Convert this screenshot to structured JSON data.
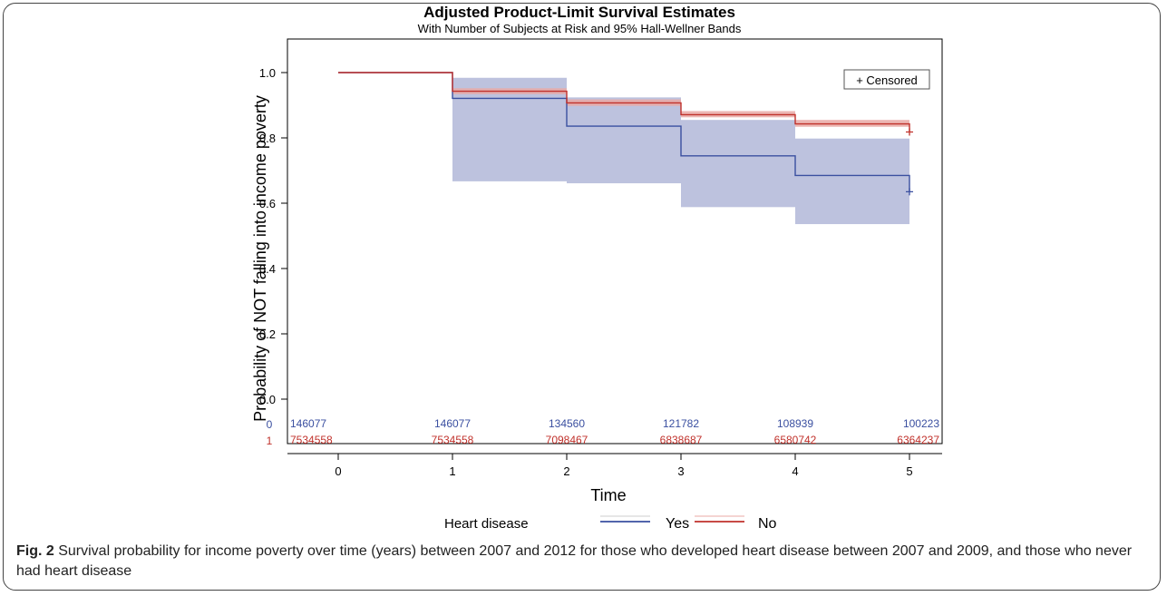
{
  "chart_data": {
    "type": "line",
    "subtype": "kaplan-meier step with confidence bands",
    "title": "Adjusted Product-Limit Survival Estimates",
    "subtitle": "With Number of Subjects at Risk and 95% Hall-Wellner Bands",
    "xlabel": "Time",
    "ylabel": "Probability of NOT falling into income poverty",
    "xlim": [
      0,
      5
    ],
    "ylim": [
      0,
      1
    ],
    "x_ticks": [
      "0",
      "1",
      "2",
      "3",
      "4",
      "5"
    ],
    "y_ticks": [
      "0.0",
      "0.2",
      "0.4",
      "0.6",
      "0.8",
      "1.0"
    ],
    "grid": false,
    "censor_legend": "+ Censored",
    "legend": {
      "title": "Heart disease",
      "placement": "bottom"
    },
    "series": [
      {
        "name": "Yes",
        "color": "#3a4fa0",
        "band_color": "#b9bfdc",
        "steps": [
          [
            0,
            1.0
          ],
          [
            1,
            0.921
          ],
          [
            2,
            0.836
          ],
          [
            3,
            0.745
          ],
          [
            4,
            0.685
          ],
          [
            5,
            0.635
          ]
        ],
        "band_lower": [
          [
            1,
            0.667
          ],
          [
            2,
            0.661
          ],
          [
            3,
            0.588
          ],
          [
            4,
            0.536
          ],
          [
            5,
            0.536
          ]
        ],
        "band_upper": [
          [
            1,
            0.984
          ],
          [
            2,
            0.924
          ],
          [
            3,
            0.855
          ],
          [
            4,
            0.798
          ],
          [
            5,
            0.798
          ]
        ],
        "censor": [
          5,
          0.635
        ]
      },
      {
        "name": "No",
        "color": "#c0312b",
        "band_color": "#e9a9a6",
        "steps": [
          [
            0,
            1.0
          ],
          [
            1,
            0.943
          ],
          [
            2,
            0.907
          ],
          [
            3,
            0.871
          ],
          [
            4,
            0.843
          ],
          [
            5,
            0.818
          ]
        ],
        "band_lower": [
          [
            1,
            0.934
          ],
          [
            2,
            0.898
          ],
          [
            3,
            0.863
          ],
          [
            4,
            0.834
          ],
          [
            5,
            0.834
          ]
        ],
        "band_upper": [
          [
            1,
            0.952
          ],
          [
            2,
            0.918
          ],
          [
            3,
            0.882
          ],
          [
            4,
            0.855
          ],
          [
            5,
            0.855
          ]
        ],
        "censor": [
          5,
          0.818
        ]
      }
    ],
    "at_risk": [
      {
        "label": "0",
        "color": "#3a4fa0",
        "values": [
          "146077",
          "146077",
          "134560",
          "121782",
          "108939",
          "100223"
        ]
      },
      {
        "label": "1",
        "color": "#c0312b",
        "values": [
          "7534558",
          "7534558",
          "7098467",
          "6838687",
          "6580742",
          "6364237"
        ]
      }
    ]
  },
  "caption": {
    "label": "Fig. 2",
    "text": " Survival probability for income poverty over time (years) between 2007 and 2012 for those who developed heart disease between 2007 and 2009, and those who never had heart disease"
  }
}
